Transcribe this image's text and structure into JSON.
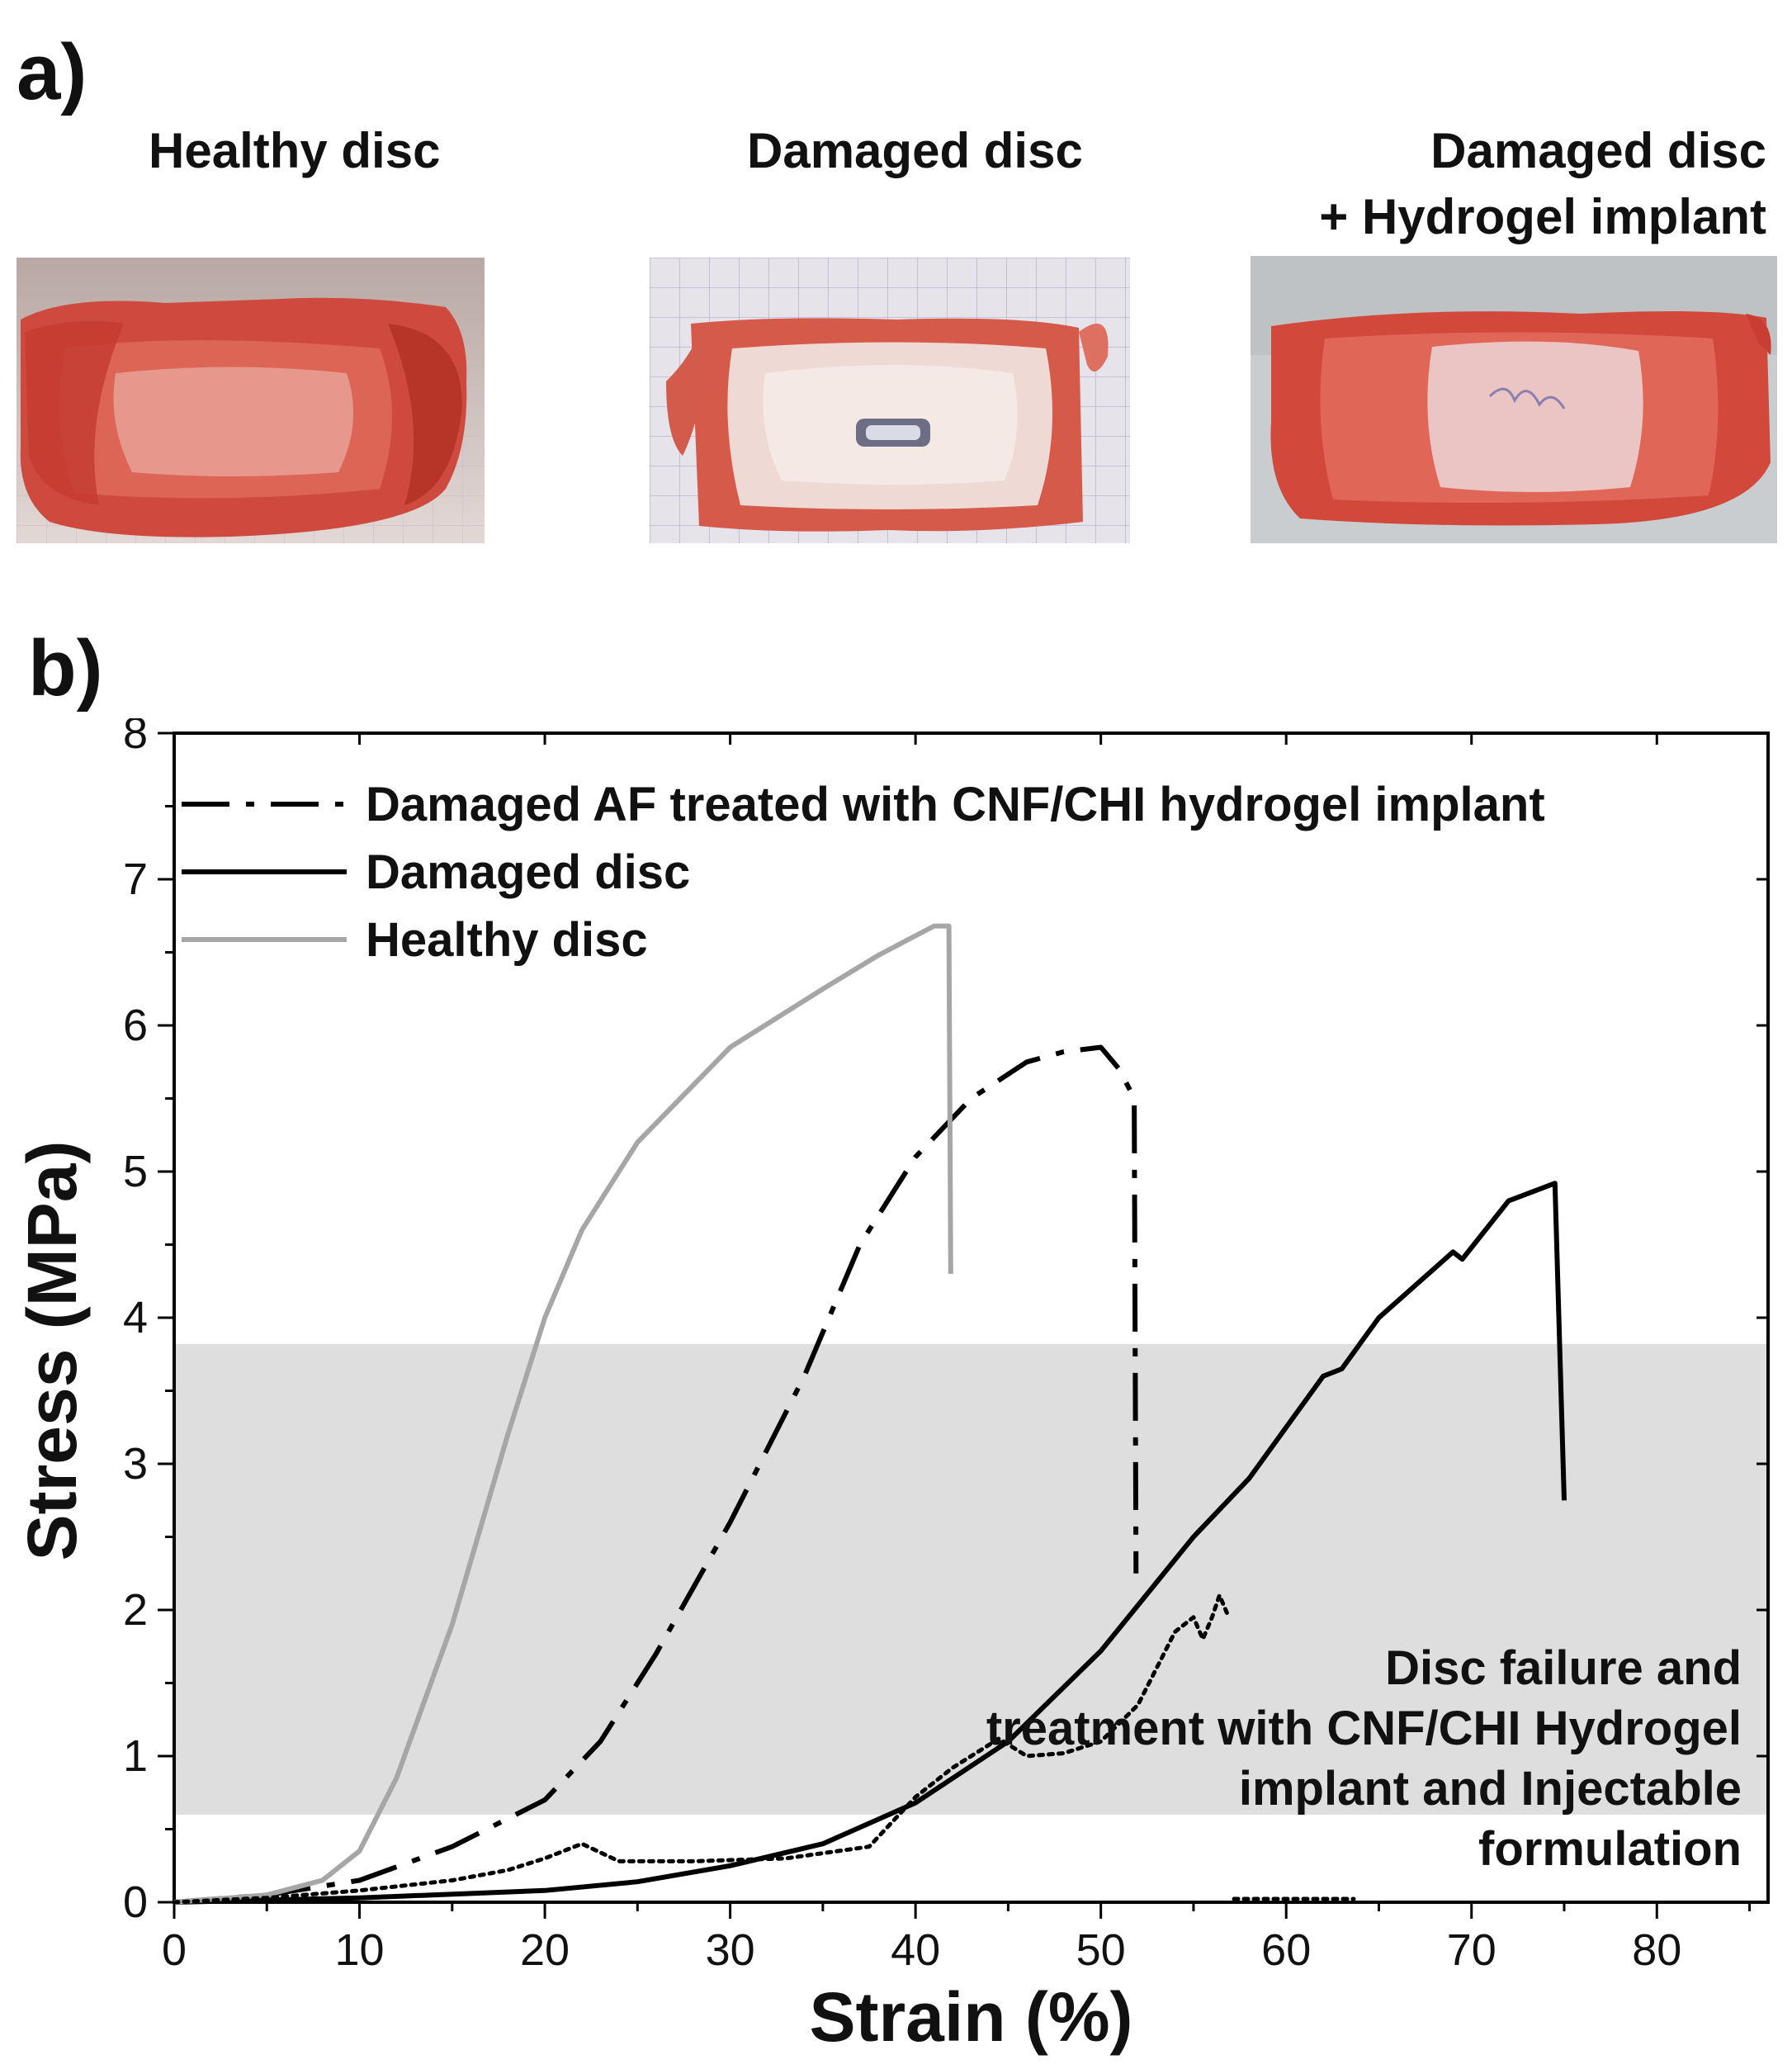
{
  "panel_a": {
    "label": "a)",
    "photos": [
      {
        "title_lines": [
          "Healthy disc"
        ]
      },
      {
        "title_lines": [
          "Damaged disc"
        ]
      },
      {
        "title_lines": [
          "Damaged disc",
          "+ Hydrogel implant"
        ]
      }
    ]
  },
  "panel_b": {
    "label": "b)"
  },
  "chart_data": {
    "type": "line",
    "xlabel": "Strain (%)",
    "ylabel": "Stress (MPa)",
    "xlim": [
      0,
      86
    ],
    "ylim": [
      0,
      8
    ],
    "x_ticks": [
      0,
      10,
      20,
      30,
      40,
      50,
      60,
      70,
      80
    ],
    "y_ticks": [
      0,
      1,
      2,
      3,
      4,
      5,
      6,
      7,
      8
    ],
    "grid": false,
    "legend_position": "top-left",
    "shaded_band": {
      "y_from": 0.6,
      "y_to": 3.82,
      "color": "#dedede"
    },
    "colors": {
      "healthy": "#a6a6a6",
      "damaged": "#000000",
      "treated": "#000000",
      "failure": "#000000"
    },
    "series": [
      {
        "name": "Damaged AF treated with CNF/CHI hydrogel implant",
        "style": "dashdot",
        "x": [
          0,
          5,
          10,
          15,
          20,
          23,
          26,
          30,
          34,
          37,
          40,
          43,
          46,
          48,
          50,
          51,
          51.8,
          51.9
        ],
        "y": [
          0,
          0.05,
          0.15,
          0.38,
          0.7,
          1.1,
          1.7,
          2.6,
          3.6,
          4.5,
          5.1,
          5.5,
          5.75,
          5.82,
          5.85,
          5.7,
          5.5,
          2.25
        ]
      },
      {
        "name": "Damaged disc",
        "style": "solid",
        "x": [
          0,
          10,
          20,
          25,
          30,
          35,
          40,
          45,
          50,
          55,
          58,
          62,
          63,
          65,
          69,
          69.5,
          72,
          74.5,
          75
        ],
        "y": [
          0,
          0.03,
          0.08,
          0.14,
          0.25,
          0.4,
          0.68,
          1.1,
          1.72,
          2.5,
          2.9,
          3.6,
          3.65,
          4.0,
          4.45,
          4.4,
          4.8,
          4.92,
          2.75
        ]
      },
      {
        "name": "Healthy disc",
        "style": "solid",
        "x": [
          0,
          5,
          8,
          10,
          12,
          15,
          18,
          20,
          22,
          25,
          30,
          35,
          38,
          41,
          41.8,
          41.9
        ],
        "y": [
          0,
          0.05,
          0.15,
          0.35,
          0.85,
          1.9,
          3.2,
          4.0,
          4.6,
          5.2,
          5.85,
          6.25,
          6.48,
          6.68,
          6.68,
          4.3
        ]
      },
      {
        "name": "Disc failure and treatment with CNF/CHI Hydrogel implant and Injectable formulation",
        "style": "dotted",
        "x": [
          0,
          5,
          10,
          15,
          18,
          20,
          22,
          24,
          28,
          33,
          37.5,
          40,
          42,
          44.5,
          46,
          48,
          50,
          52,
          54,
          55,
          55.5,
          56,
          56.4,
          56.8
        ],
        "y": [
          0,
          0.03,
          0.08,
          0.15,
          0.22,
          0.3,
          0.4,
          0.28,
          0.28,
          0.3,
          0.38,
          0.72,
          0.92,
          1.12,
          1.0,
          1.02,
          1.1,
          1.35,
          1.85,
          1.95,
          1.8,
          1.95,
          2.1,
          1.98
        ]
      }
    ]
  }
}
